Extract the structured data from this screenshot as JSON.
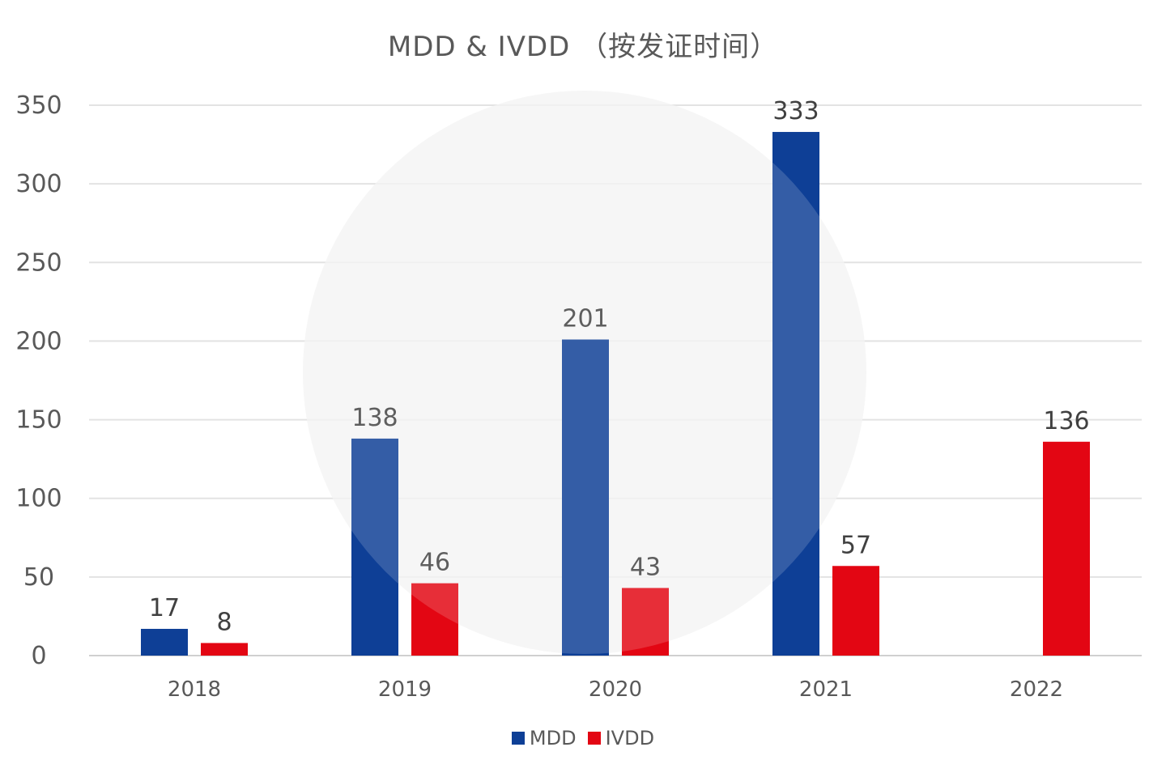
{
  "chart_data": {
    "type": "bar",
    "title": "MDD & IVDD （按发证时间）",
    "xlabel": "",
    "ylabel": "",
    "categories": [
      "2018",
      "2019",
      "2020",
      "2021",
      "2022"
    ],
    "series": [
      {
        "name": "MDD",
        "values": [
          17,
          138,
          201,
          333,
          null
        ],
        "color": "#0e3f96"
      },
      {
        "name": "IVDD",
        "values": [
          8,
          46,
          43,
          57,
          136
        ],
        "color": "#e30613"
      }
    ],
    "ylim": [
      0,
      350
    ],
    "yticks": [
      0,
      50,
      100,
      150,
      200,
      250,
      300,
      350
    ],
    "grid": true,
    "legend": "bottom",
    "data_labels": true
  }
}
